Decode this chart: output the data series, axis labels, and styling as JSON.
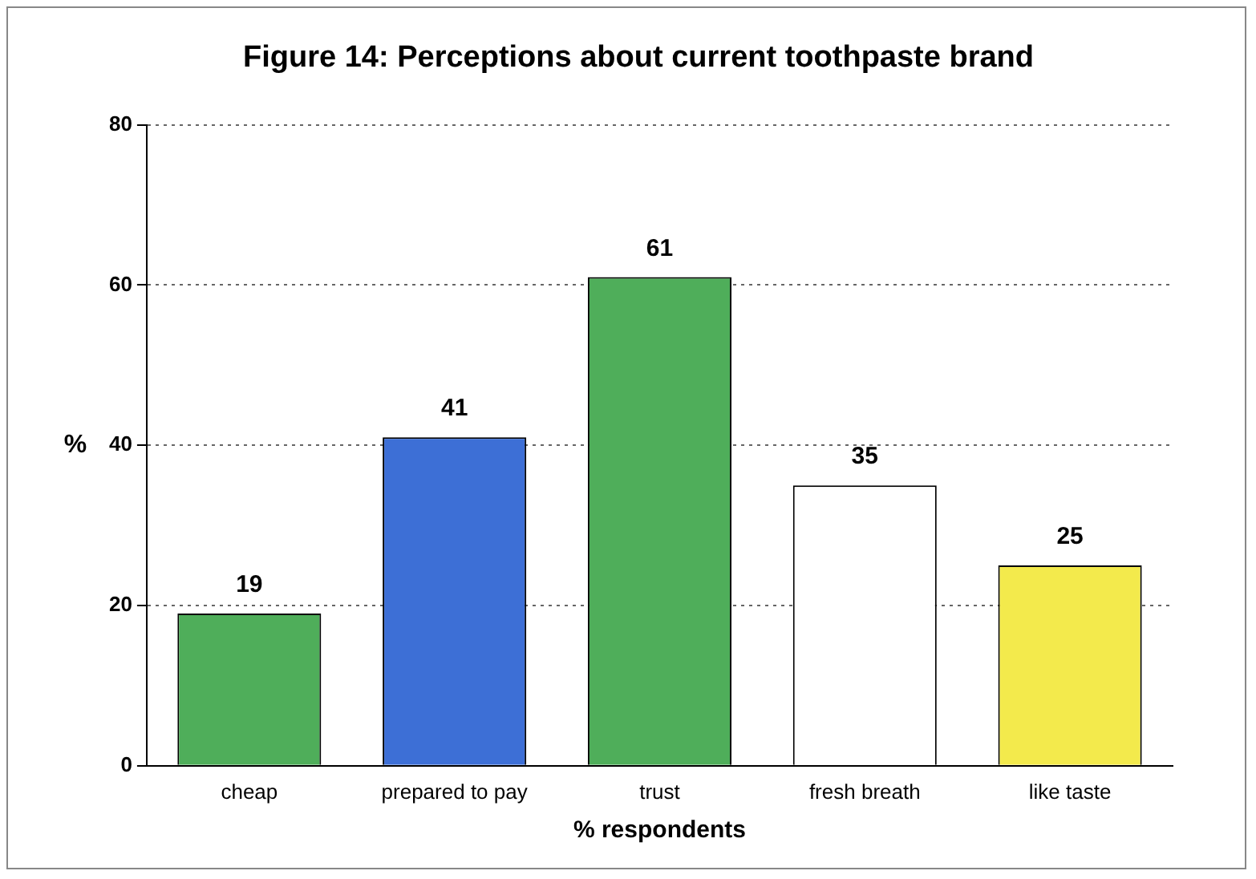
{
  "chart_data": {
    "type": "bar",
    "title": "Figure 14: Perceptions about current toothpaste brand",
    "xlabel": "% respondents",
    "ylabel": "%",
    "categories": [
      "cheap",
      "prepared to pay",
      "trust",
      "fresh breath",
      "like taste"
    ],
    "values": [
      19,
      41,
      61,
      35,
      25
    ],
    "colors": [
      "#4fae5a",
      "#3d6fd6",
      "#4fae5a",
      "#ffffff",
      "#f3ea4c"
    ],
    "ylim": [
      0,
      80
    ],
    "yticks": [
      0,
      20,
      40,
      60,
      80
    ],
    "grid": "y",
    "data_labels": true
  }
}
